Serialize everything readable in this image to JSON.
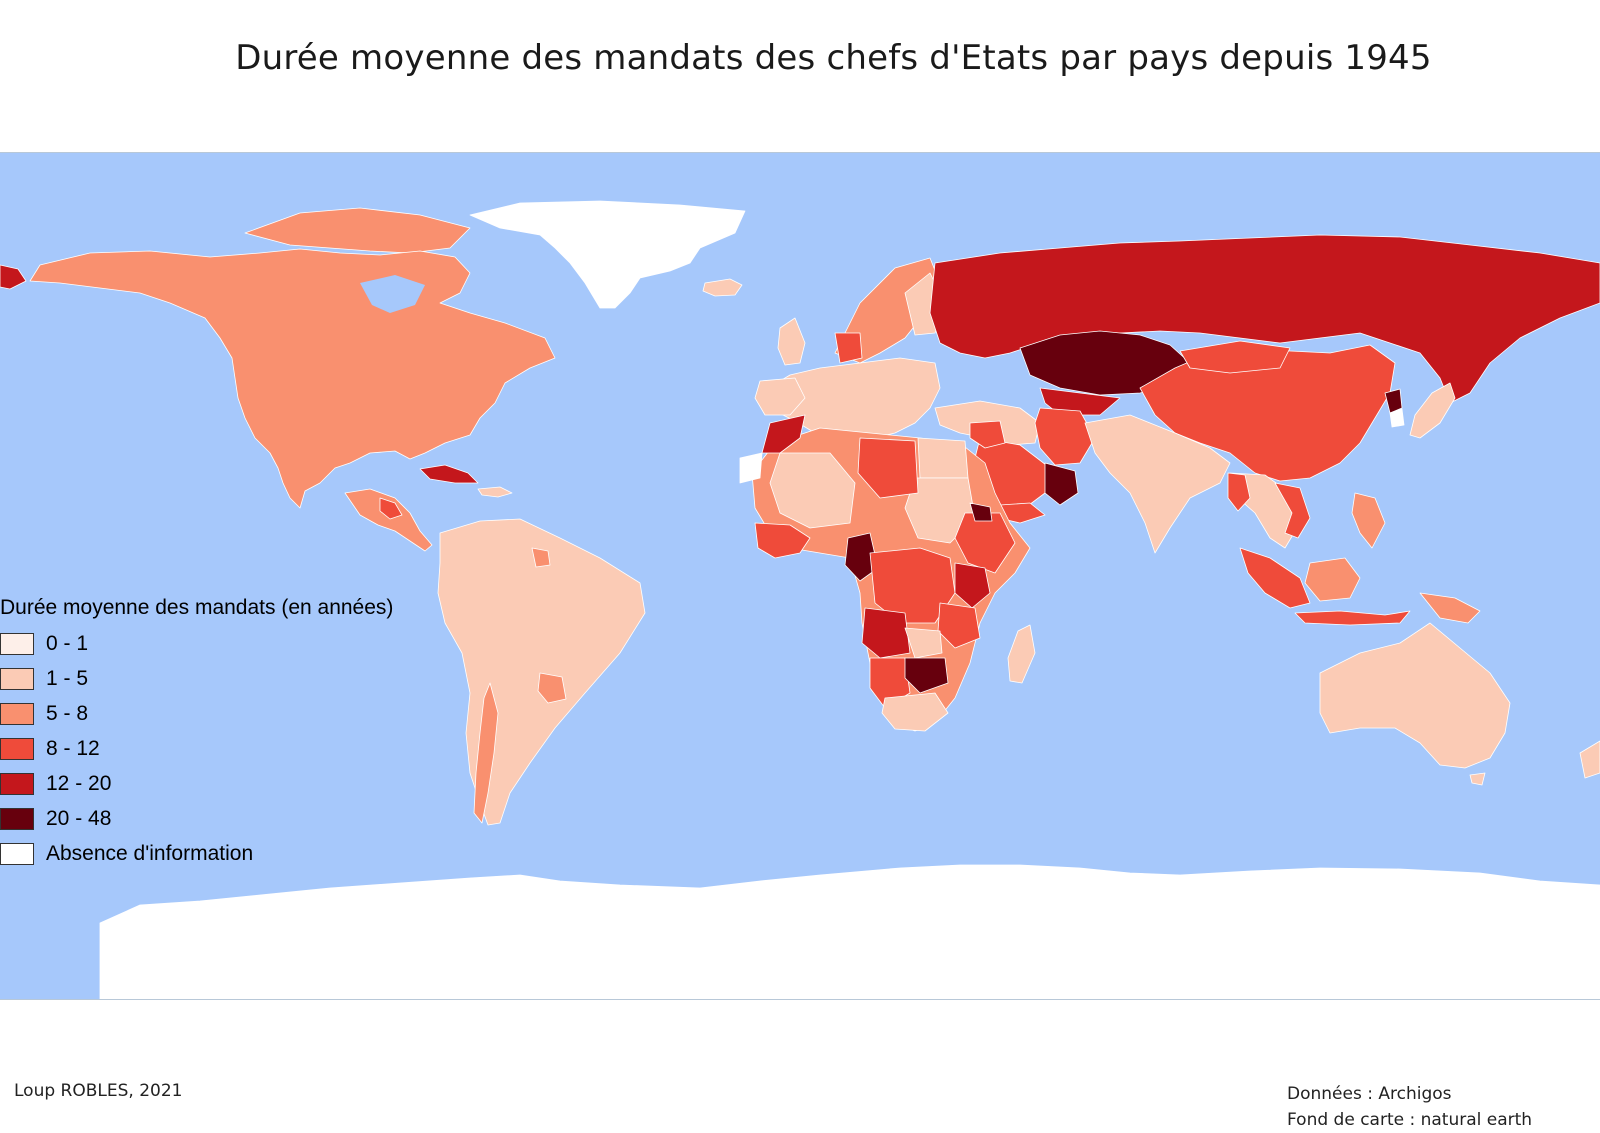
{
  "title": "Durée moyenne des mandats des chefs d'Etats par pays depuis 1945",
  "colors": {
    "ocean": "#a6c8fb",
    "class_0_1": "#fdefe9",
    "class_1_5": "#fbcbb5",
    "class_5_8": "#f9906f",
    "class_8_12": "#ef4b3a",
    "class_12_20": "#c4171c",
    "class_20_48": "#67000d",
    "no_data": "#ffffff"
  },
  "legend": {
    "title": "Durée moyenne des mandats (en années)",
    "items": [
      {
        "label": "0 - 1",
        "color": "#fdefe9"
      },
      {
        "label": "1 - 5",
        "color": "#fbcbb5"
      },
      {
        "label": "5 - 8",
        "color": "#f9906f"
      },
      {
        "label": "8 - 12",
        "color": "#ef4b3a"
      },
      {
        "label": "12 - 20",
        "color": "#c4171c"
      },
      {
        "label": "20 - 48",
        "color": "#67000d"
      },
      {
        "label": "Absence d'information",
        "color": "#ffffff"
      }
    ]
  },
  "footer": {
    "author": "Loup ROBLES, 2021",
    "source": "Données : Archigos",
    "basemap": "Fond de carte : natural earth"
  }
}
